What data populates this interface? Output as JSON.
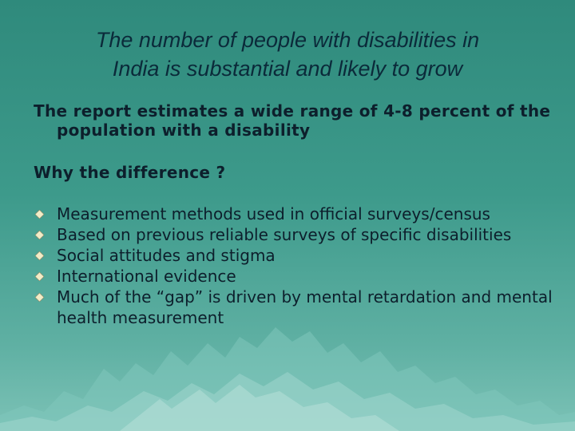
{
  "slide": {
    "title_line1": "The number of people with disabilities in",
    "title_line2": "India is substantial and likely to grow",
    "lead_text": "The report estimates a wide range of 4-8 percent of the population with a disability",
    "question": "Why the difference ?",
    "bullet_icon": "diamond-icon",
    "bullets": [
      "Measurement methods used in official surveys/census",
      "Based on previous reliable surveys of specific disabilities",
      "Social attitudes and stigma",
      "International evidence",
      "Much of the “gap” is driven by mental retardation and mental health measurement"
    ]
  }
}
